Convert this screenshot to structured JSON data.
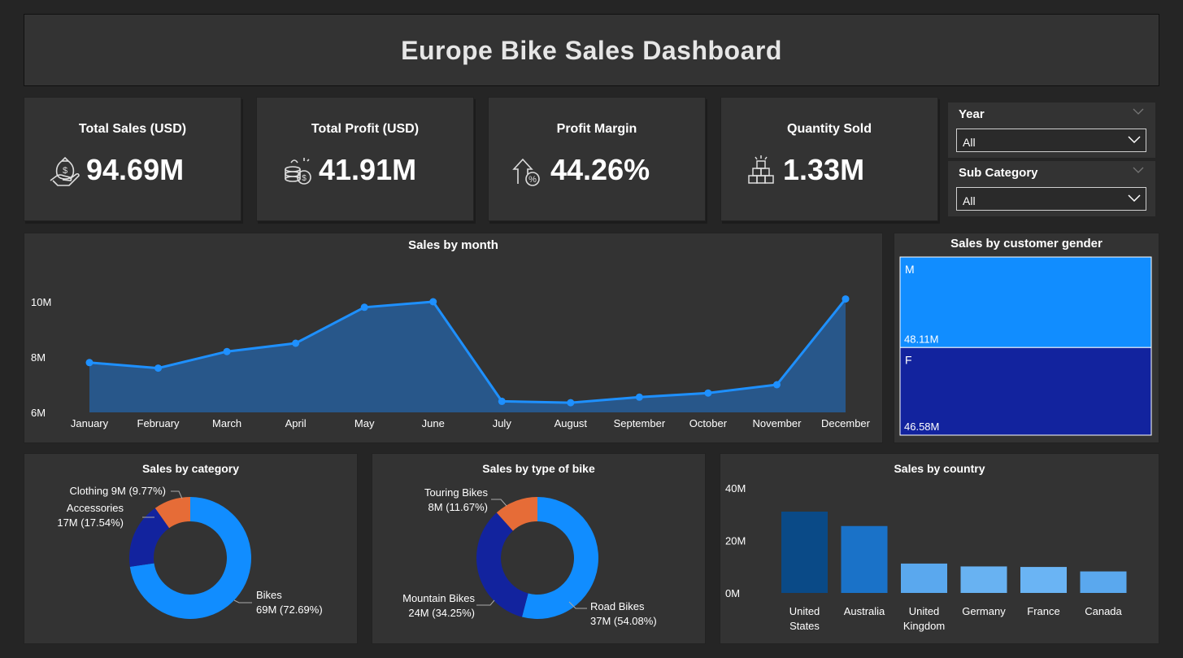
{
  "title": "Europe Bike Sales Dashboard",
  "kpis": [
    {
      "label": "Total Sales (USD)",
      "value": "94.69M",
      "icon": "money-bag-hand-icon"
    },
    {
      "label": "Total Profit (USD)",
      "value": "41.91M",
      "icon": "coins-stack-icon"
    },
    {
      "label": "Profit Margin",
      "value": "44.26%",
      "icon": "percent-growth-icon"
    },
    {
      "label": "Quantity Sold",
      "value": "1.33M",
      "icon": "boxes-stack-icon"
    }
  ],
  "slicers": [
    {
      "title": "Year",
      "value": "All"
    },
    {
      "title": "Sub Category",
      "value": "All"
    }
  ],
  "colors": {
    "line": "#1e90ff",
    "area": "#28578a",
    "blue_light": "#118dff",
    "blue_dark": "#12239e",
    "orange": "#e66c37"
  },
  "chart_data": [
    {
      "id": "month",
      "type": "area",
      "title": "Sales by month",
      "categories": [
        "January",
        "February",
        "March",
        "April",
        "May",
        "June",
        "July",
        "August",
        "September",
        "October",
        "November",
        "December"
      ],
      "values": [
        7.8,
        7.6,
        8.2,
        8.5,
        9.8,
        10.0,
        6.4,
        6.35,
        6.55,
        6.7,
        7.0,
        10.1
      ],
      "ylim": [
        6,
        11
      ],
      "yticks": [
        "6M",
        "8M",
        "10M"
      ],
      "ytick_values": [
        6,
        8,
        10
      ]
    },
    {
      "id": "gender",
      "type": "treemap",
      "title": "Sales by customer gender",
      "items": [
        {
          "name": "M",
          "label": "48.11M",
          "value": 48.11
        },
        {
          "name": "F",
          "label": "46.58M",
          "value": 46.58
        }
      ]
    },
    {
      "id": "category",
      "type": "pie",
      "title": "Sales by category",
      "slices": [
        {
          "name": "Bikes",
          "label1": "Bikes",
          "label2": "69M (72.69%)",
          "value": 72.69
        },
        {
          "name": "Accessories",
          "label1": "Accessories",
          "label2": "17M (17.54%)",
          "value": 17.54
        },
        {
          "name": "Clothing",
          "label1": "Clothing 9M (9.77%)",
          "label2": "",
          "value": 9.77
        }
      ]
    },
    {
      "id": "biketype",
      "type": "pie",
      "title": "Sales by type of bike",
      "slices": [
        {
          "name": "Road Bikes",
          "label1": "Road Bikes",
          "label2": "37M (54.08%)",
          "value": 54.08
        },
        {
          "name": "Mountain Bikes",
          "label1": "Mountain Bikes",
          "label2": "24M (34.25%)",
          "value": 34.25
        },
        {
          "name": "Touring Bikes",
          "label1": "Touring Bikes",
          "label2": "8M (11.67%)",
          "value": 11.67
        }
      ]
    },
    {
      "id": "country",
      "type": "bar",
      "title": "Sales by country",
      "categories": [
        [
          "United",
          "States"
        ],
        [
          "Australia"
        ],
        [
          "United",
          "Kingdom"
        ],
        [
          "Germany"
        ],
        [
          "France"
        ],
        [
          "Canada"
        ]
      ],
      "values": [
        31,
        25.5,
        11.2,
        10.1,
        9.9,
        8.2
      ],
      "bar_colors": [
        "#0a4a87",
        "#1a72c8",
        "#5aa8ee",
        "#68b2f2",
        "#6ab4f4",
        "#5aa8ee"
      ],
      "ylim": [
        0,
        40
      ],
      "yticks": [
        "0M",
        "20M",
        "40M"
      ],
      "ytick_values": [
        0,
        20,
        40
      ]
    }
  ]
}
